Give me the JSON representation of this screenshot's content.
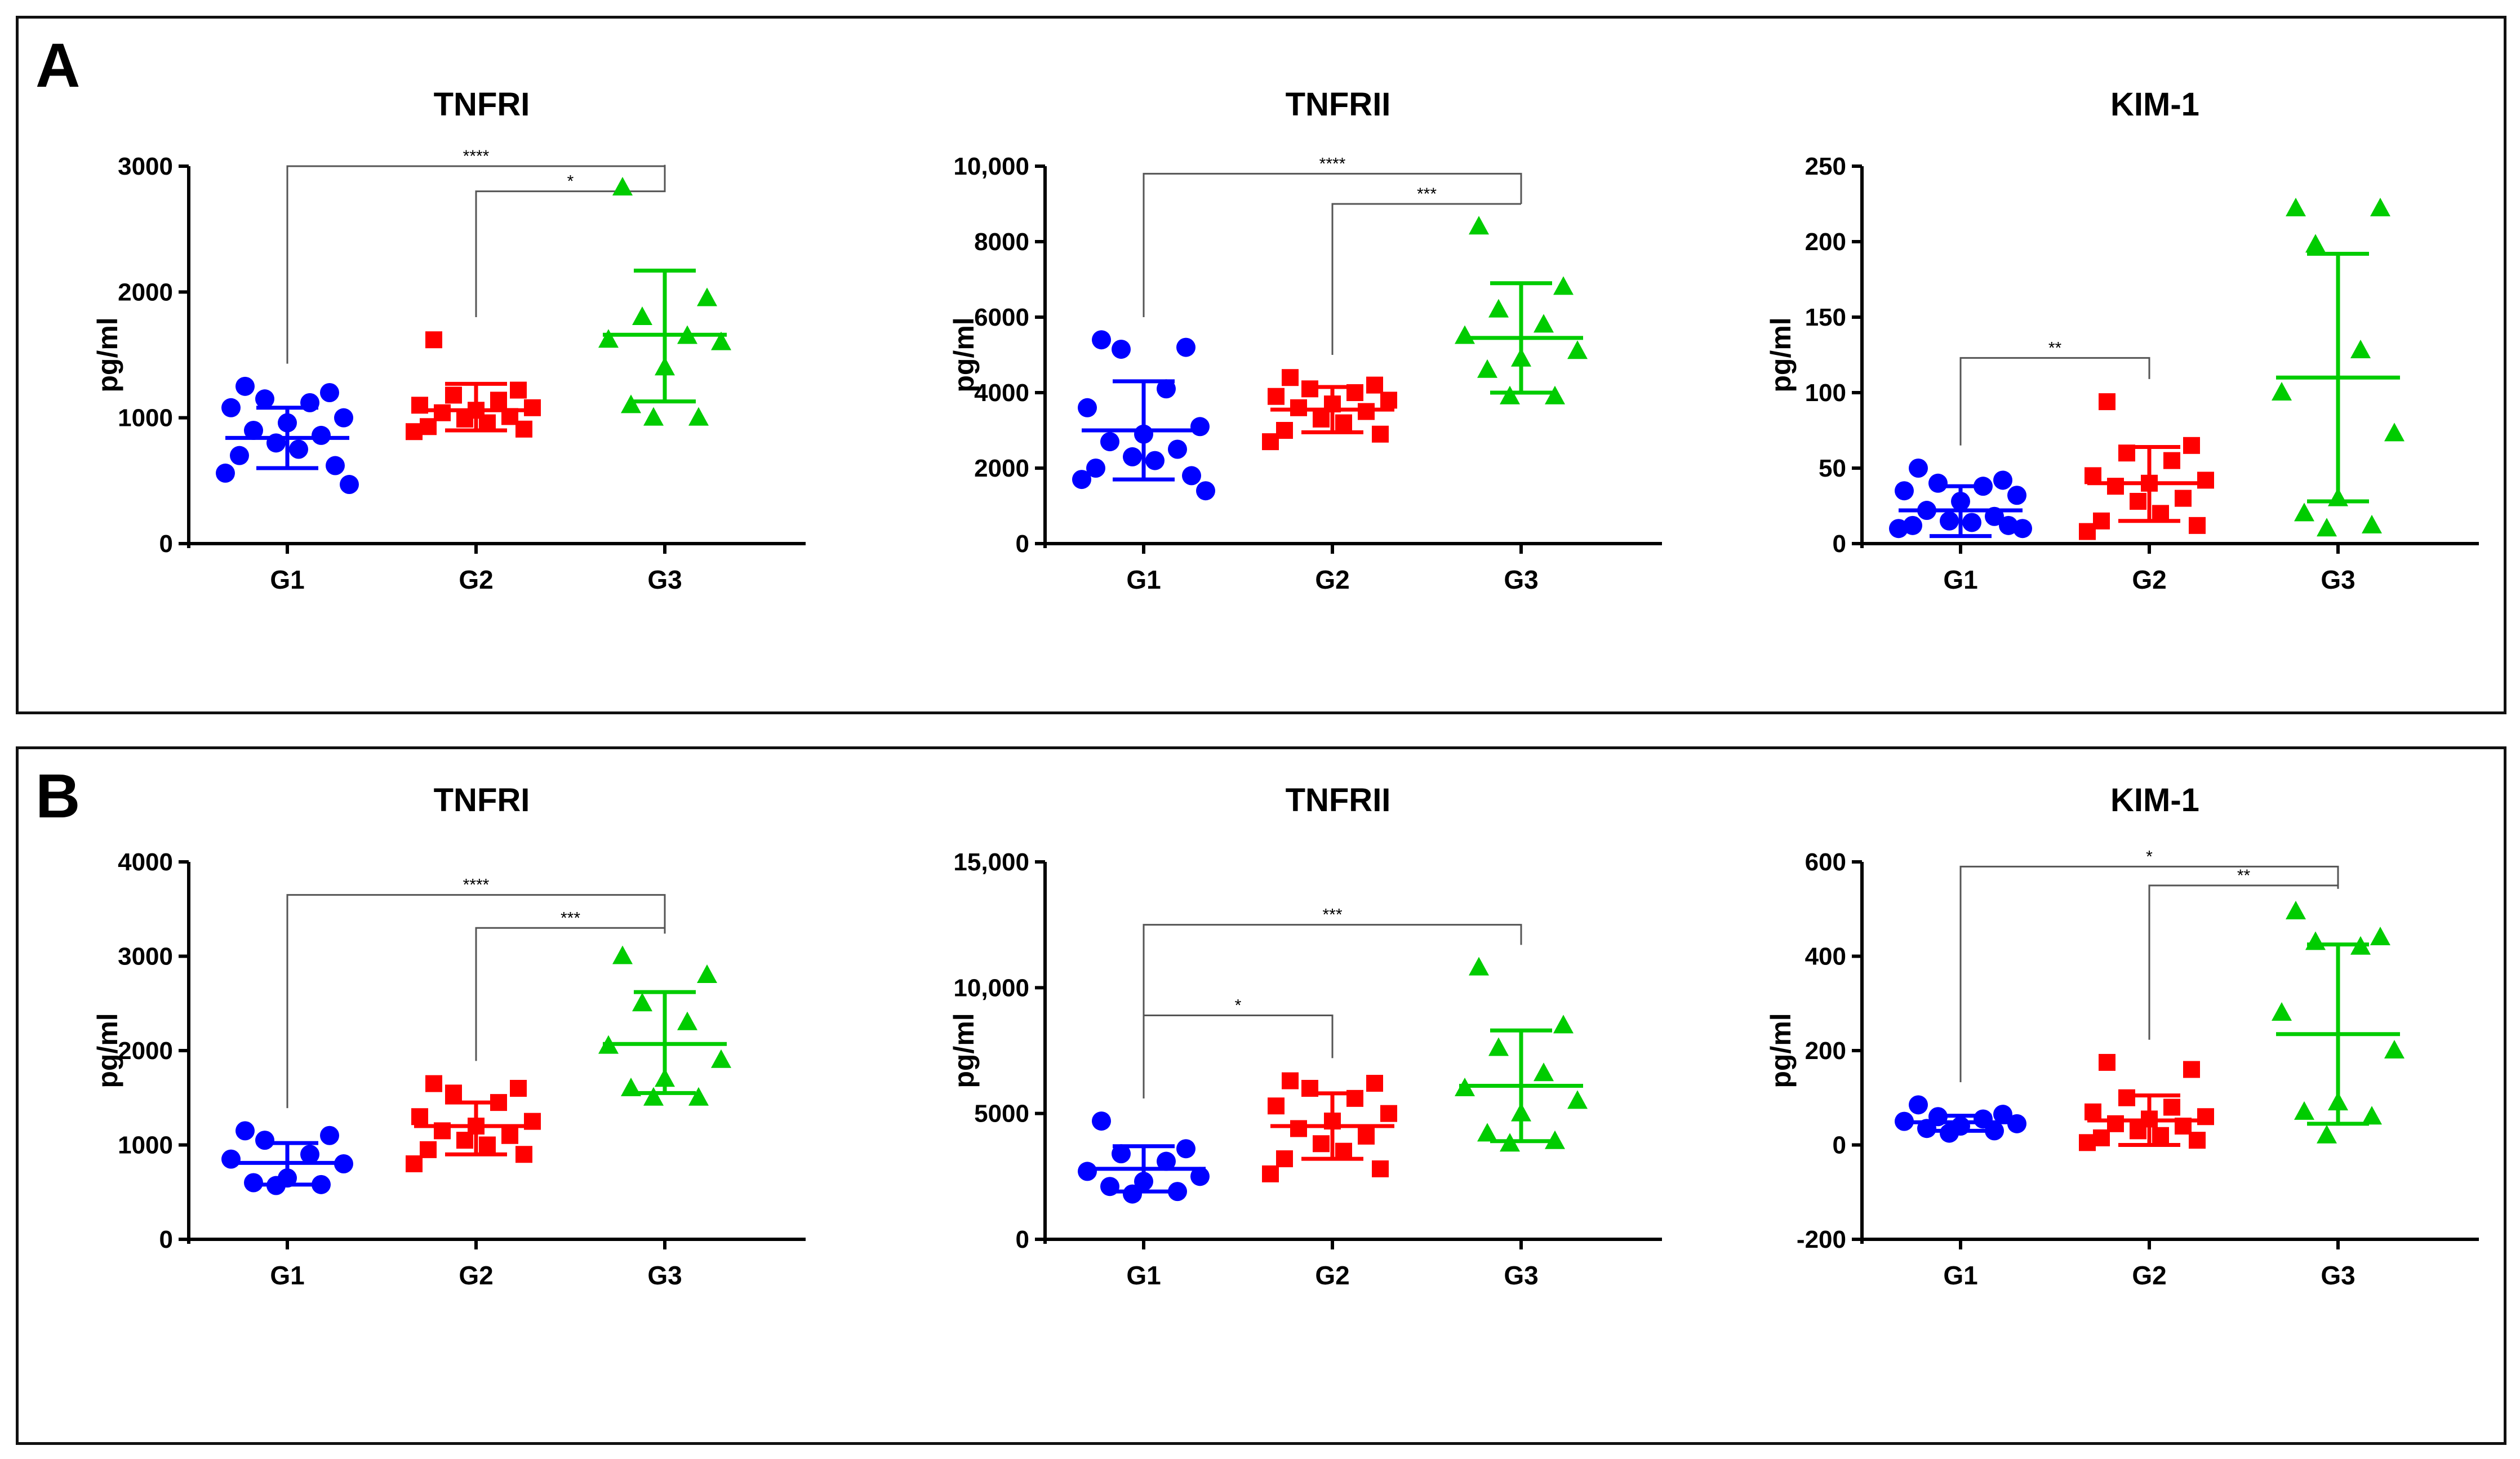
{
  "panels": [
    {
      "letter": "A"
    },
    {
      "letter": "B"
    }
  ],
  "colors": {
    "G1": "#0000ff",
    "G2": "#ff0000",
    "G3": "#00cc00",
    "axis": "#000000",
    "bracket": "#555555"
  },
  "chart_data": [
    {
      "panel": "A",
      "type": "scatter",
      "title": "TNFRI",
      "ylabel": "pg/ml",
      "categories": [
        "G1",
        "G2",
        "G3"
      ],
      "ylim": [
        0,
        3000
      ],
      "yticks": [
        0,
        1000,
        2000,
        3000
      ],
      "ytick_labels": [
        "0",
        "1000",
        "2000",
        "3000"
      ],
      "series": [
        {
          "category": "G1",
          "marker": "circle",
          "mean": 840,
          "sd_low": 600,
          "sd_high": 1080,
          "values": [
            1250,
            1200,
            1150,
            1120,
            1080,
            1000,
            960,
            900,
            860,
            800,
            750,
            700,
            620,
            560,
            470
          ]
        },
        {
          "category": "G2",
          "marker": "square",
          "mean": 1060,
          "sd_low": 900,
          "sd_high": 1270,
          "values": [
            1620,
            1220,
            1180,
            1140,
            1100,
            1080,
            1060,
            1040,
            1010,
            990,
            960,
            930,
            910,
            890
          ]
        },
        {
          "category": "G3",
          "marker": "triangle",
          "mean": 1660,
          "sd_low": 1130,
          "sd_high": 2170,
          "values": [
            2830,
            1950,
            1800,
            1650,
            1620,
            1600,
            1400,
            1100,
            1000,
            1000
          ]
        }
      ],
      "brackets": [
        {
          "from": "G1",
          "to": "G3",
          "y": 3000,
          "label": "****"
        },
        {
          "from": "G2",
          "to": "G3",
          "y": 2800,
          "label": "*"
        }
      ]
    },
    {
      "panel": "A",
      "type": "scatter",
      "title": "TNFRII",
      "ylabel": "pg/ml",
      "categories": [
        "G1",
        "G2",
        "G3"
      ],
      "ylim": [
        0,
        10000
      ],
      "yticks": [
        0,
        2000,
        4000,
        6000,
        8000,
        10000
      ],
      "ytick_labels": [
        "0",
        "2000",
        "4000",
        "6000",
        "8000",
        "10,000"
      ],
      "series": [
        {
          "category": "G1",
          "marker": "circle",
          "mean": 3000,
          "sd_low": 1700,
          "sd_high": 4300,
          "values": [
            5400,
            5200,
            5150,
            4100,
            3600,
            3100,
            2900,
            2700,
            2500,
            2300,
            2200,
            2000,
            1800,
            1700,
            1400
          ]
        },
        {
          "category": "G2",
          "marker": "square",
          "mean": 3550,
          "sd_low": 2950,
          "sd_high": 4150,
          "values": [
            4400,
            4200,
            4100,
            4000,
            3900,
            3800,
            3700,
            3600,
            3500,
            3300,
            3200,
            3000,
            2900,
            2700
          ]
        },
        {
          "category": "G3",
          "marker": "triangle",
          "mean": 5450,
          "sd_low": 4000,
          "sd_high": 6900,
          "values": [
            8400,
            6800,
            6200,
            5800,
            5500,
            5100,
            4900,
            4600,
            3900,
            3900
          ]
        }
      ],
      "brackets": [
        {
          "from": "G1",
          "to": "G3",
          "y": 9800,
          "label": "****"
        },
        {
          "from": "G2",
          "to": "G3",
          "y": 9000,
          "label": "***"
        }
      ]
    },
    {
      "panel": "A",
      "type": "scatter",
      "title": "KIM-1",
      "ylabel": "pg/ml",
      "categories": [
        "G1",
        "G2",
        "G3"
      ],
      "ylim": [
        0,
        250
      ],
      "yticks": [
        0,
        50,
        100,
        150,
        200,
        250
      ],
      "ytick_labels": [
        "0",
        "50",
        "100",
        "150",
        "200",
        "250"
      ],
      "series": [
        {
          "category": "G1",
          "marker": "circle",
          "mean": 22,
          "sd_low": 5,
          "sd_high": 38,
          "values": [
            50,
            42,
            40,
            38,
            35,
            32,
            28,
            22,
            18,
            15,
            14,
            12,
            12,
            10,
            10
          ]
        },
        {
          "category": "G2",
          "marker": "square",
          "mean": 40,
          "sd_low": 15,
          "sd_high": 64,
          "values": [
            94,
            65,
            60,
            55,
            45,
            42,
            40,
            38,
            30,
            28,
            20,
            15,
            12,
            8
          ]
        },
        {
          "category": "G3",
          "marker": "triangle",
          "mean": 110,
          "sd_low": 28,
          "sd_high": 192,
          "values": [
            222,
            222,
            198,
            128,
            100,
            73,
            30,
            20,
            12,
            10
          ]
        }
      ],
      "brackets": [
        {
          "from": "G1",
          "to": "G2",
          "y": 123,
          "label": "**"
        }
      ]
    },
    {
      "panel": "B",
      "type": "scatter",
      "title": "TNFRI",
      "ylabel": "pg/ml",
      "categories": [
        "G1",
        "G2",
        "G3"
      ],
      "ylim": [
        0,
        4000
      ],
      "yticks": [
        0,
        1000,
        2000,
        3000,
        4000
      ],
      "ytick_labels": [
        "0",
        "1000",
        "2000",
        "3000",
        "4000"
      ],
      "series": [
        {
          "category": "G1",
          "marker": "circle",
          "mean": 810,
          "sd_low": 580,
          "sd_high": 1020,
          "values": [
            1150,
            1100,
            1050,
            900,
            850,
            800,
            650,
            600,
            580,
            570
          ]
        },
        {
          "category": "G2",
          "marker": "square",
          "mean": 1200,
          "sd_low": 900,
          "sd_high": 1450,
          "values": [
            1650,
            1600,
            1550,
            1450,
            1300,
            1250,
            1200,
            1150,
            1100,
            1050,
            1000,
            950,
            900,
            800
          ]
        },
        {
          "category": "G3",
          "marker": "triangle",
          "mean": 2070,
          "sd_low": 1550,
          "sd_high": 2620,
          "values": [
            3000,
            2800,
            2500,
            2300,
            2050,
            1900,
            1700,
            1600,
            1500,
            1500
          ]
        }
      ],
      "brackets": [
        {
          "from": "G1",
          "to": "G3",
          "y": 3650,
          "label": "****"
        },
        {
          "from": "G2",
          "to": "G3",
          "y": 3300,
          "label": "***"
        }
      ]
    },
    {
      "panel": "B",
      "type": "scatter",
      "title": "TNFRII",
      "ylabel": "pg/ml",
      "categories": [
        "G1",
        "G2",
        "G3"
      ],
      "ylim": [
        0,
        15000
      ],
      "yticks": [
        0,
        5000,
        10000,
        15000
      ],
      "ytick_labels": [
        "0",
        "5000",
        "10,000",
        "15,000"
      ],
      "series": [
        {
          "category": "G1",
          "marker": "circle",
          "mean": 2800,
          "sd_low": 1900,
          "sd_high": 3700,
          "values": [
            4700,
            3600,
            3400,
            3100,
            2700,
            2500,
            2300,
            2100,
            1900,
            1800
          ]
        },
        {
          "category": "G2",
          "marker": "square",
          "mean": 4500,
          "sd_low": 3200,
          "sd_high": 5800,
          "values": [
            6300,
            6200,
            6000,
            5600,
            5300,
            5000,
            4700,
            4400,
            4100,
            3800,
            3500,
            3200,
            2800,
            2600
          ]
        },
        {
          "category": "G3",
          "marker": "triangle",
          "mean": 6100,
          "sd_low": 3900,
          "sd_high": 8300,
          "values": [
            10800,
            8500,
            7600,
            6600,
            6000,
            5500,
            5000,
            4200,
            3900,
            3800
          ]
        }
      ],
      "brackets": [
        {
          "from": "G1",
          "to": "G3",
          "y": 12500,
          "label": "***"
        },
        {
          "from": "G1",
          "to": "G2",
          "y": 8900,
          "label": "*"
        }
      ]
    },
    {
      "panel": "B",
      "type": "scatter",
      "title": "KIM-1",
      "ylabel": "pg/ml",
      "categories": [
        "G1",
        "G2",
        "G3"
      ],
      "ylim": [
        -200,
        600
      ],
      "yticks": [
        -200,
        0,
        200,
        400,
        600
      ],
      "ytick_labels": [
        "-200",
        "0",
        "200",
        "400",
        "600"
      ],
      "series": [
        {
          "category": "G1",
          "marker": "circle",
          "mean": 48,
          "sd_low": 30,
          "sd_high": 62,
          "values": [
            85,
            65,
            60,
            55,
            50,
            45,
            40,
            35,
            30,
            25
          ]
        },
        {
          "category": "G2",
          "marker": "square",
          "mean": 52,
          "sd_low": 0,
          "sd_high": 105,
          "values": [
            175,
            160,
            100,
            80,
            70,
            60,
            55,
            45,
            40,
            30,
            20,
            15,
            10,
            5
          ]
        },
        {
          "category": "G3",
          "marker": "triangle",
          "mean": 235,
          "sd_low": 45,
          "sd_high": 425,
          "values": [
            495,
            440,
            430,
            420,
            280,
            200,
            90,
            70,
            60,
            20
          ]
        }
      ],
      "brackets": [
        {
          "from": "G1",
          "to": "G3",
          "y": 590,
          "label": "*"
        },
        {
          "from": "G2",
          "to": "G3",
          "y": 550,
          "label": "**"
        }
      ]
    }
  ]
}
